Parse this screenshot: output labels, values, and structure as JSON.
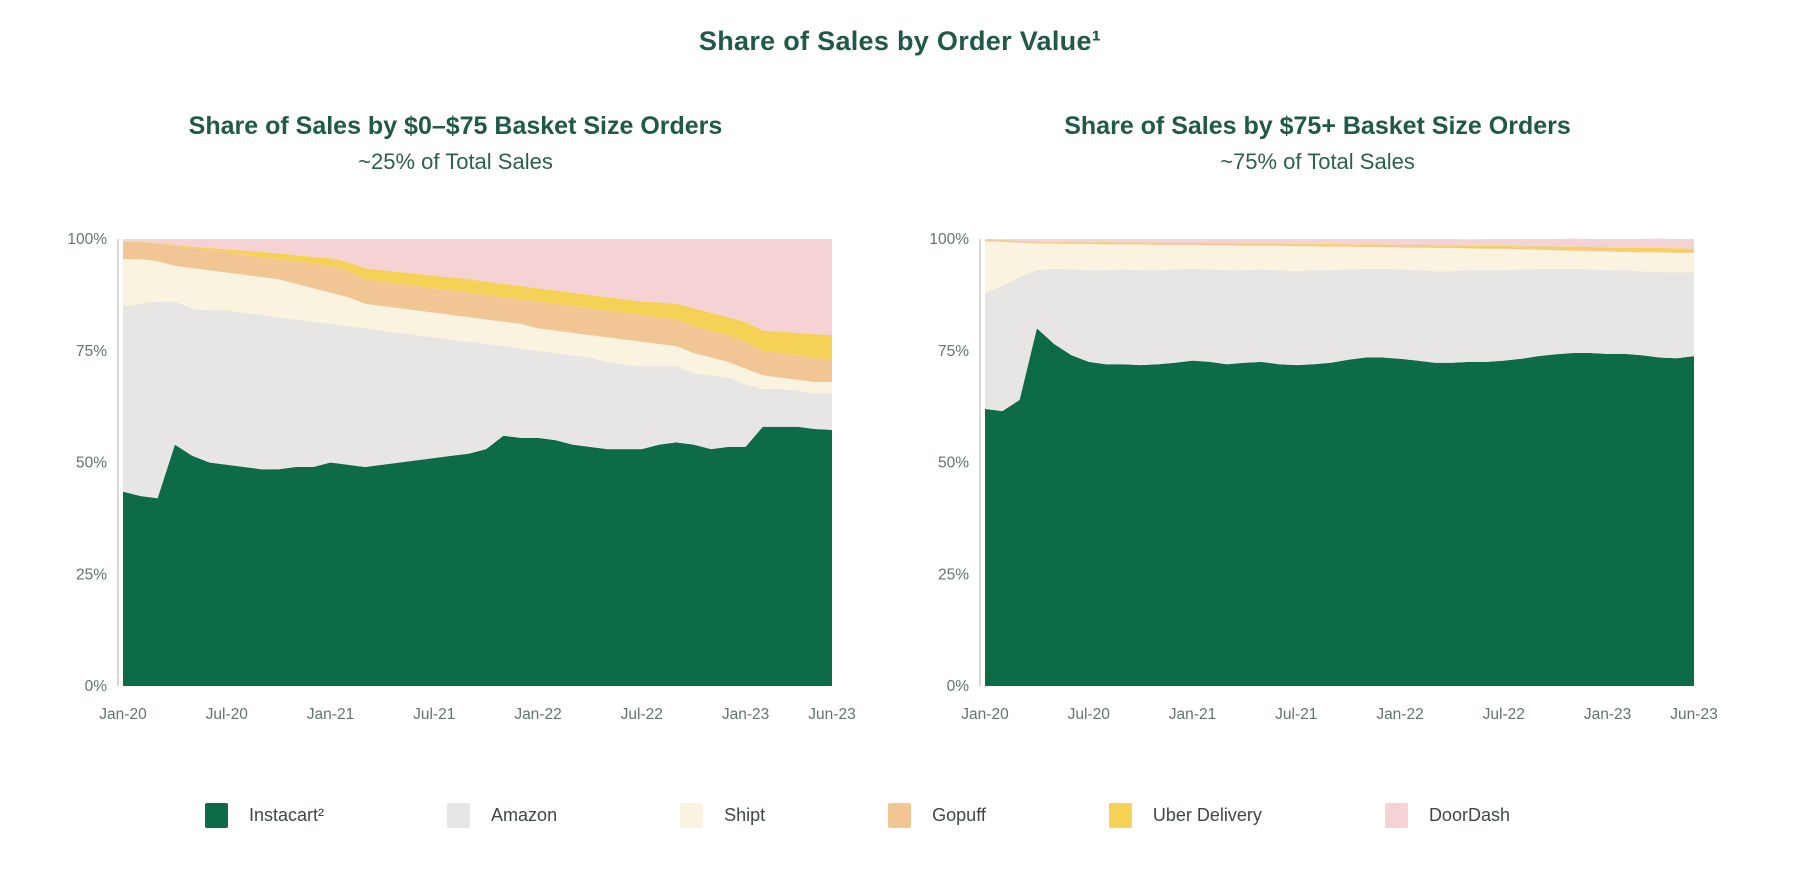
{
  "header": {
    "title": "Share of Sales by Order Value¹"
  },
  "style_colors": {
    "title_green": "#215949",
    "axis_label_gray": "#63746e",
    "axis_line_gray": "#c9cccb",
    "legend_text": "#404744"
  },
  "legend": {
    "items": [
      {
        "label": "Instacart²",
        "color": "#0d6b48"
      },
      {
        "label": "Amazon",
        "color": "#e7e6e4"
      },
      {
        "label": "Shipt",
        "color": "#faf3e0"
      },
      {
        "label": "Gopuff",
        "color": "#f2c595"
      },
      {
        "label": "Uber Delivery",
        "color": "#f5d255"
      },
      {
        "label": "DoorDash",
        "color": "#f5d2d4"
      }
    ]
  },
  "chart_data": [
    {
      "type": "area",
      "stacked": true,
      "title": "Share of Sales by $0–$75 Basket Size Orders",
      "subtitle": "~25% of Total Sales",
      "ylabel": "",
      "xlabel": "",
      "ylim": [
        0,
        100
      ],
      "grid": false,
      "legend_position": "bottom-shared",
      "x": [
        "Jan-20",
        "Feb-20",
        "Mar-20",
        "Apr-20",
        "May-20",
        "Jun-20",
        "Jul-20",
        "Aug-20",
        "Sep-20",
        "Oct-20",
        "Nov-20",
        "Dec-20",
        "Jan-21",
        "Feb-21",
        "Mar-21",
        "Apr-21",
        "May-21",
        "Jun-21",
        "Jul-21",
        "Aug-21",
        "Sep-21",
        "Oct-21",
        "Nov-21",
        "Dec-21",
        "Jan-22",
        "Feb-22",
        "Mar-22",
        "Apr-22",
        "May-22",
        "Jun-22",
        "Jul-22",
        "Aug-22",
        "Sep-22",
        "Oct-22",
        "Nov-22",
        "Dec-22",
        "Jan-23",
        "Feb-23",
        "Mar-23",
        "Apr-23",
        "May-23",
        "Jun-23"
      ],
      "x_tick_indices": [
        0,
        6,
        12,
        18,
        24,
        30,
        36,
        41
      ],
      "x_tick_labels": [
        "Jan-20",
        "Jul-20",
        "Jan-21",
        "Jul-21",
        "Jan-22",
        "Jul-22",
        "Jan-23",
        "Jun-23"
      ],
      "y_ticks": [
        {
          "label": "100%",
          "value": 100
        },
        {
          "label": "75%",
          "value": 75
        },
        {
          "label": "50%",
          "value": 50
        },
        {
          "label": "25%",
          "value": 25
        },
        {
          "label": "0%",
          "value": 0
        }
      ],
      "series": [
        {
          "name": "Instacart",
          "values": [
            43.5,
            42.5,
            42,
            54,
            51.5,
            50,
            49.5,
            49,
            48.5,
            48.5,
            49,
            49,
            50,
            49.5,
            49,
            49.5,
            50,
            50.5,
            51,
            51.5,
            52,
            53,
            56,
            55.5,
            55.5,
            55,
            54,
            53.5,
            53,
            53,
            53,
            54,
            54.5,
            54,
            53,
            53.5,
            53.5,
            58,
            58,
            58,
            57.5,
            57.3
          ]
        },
        {
          "name": "Amazon",
          "values": [
            41.5,
            43,
            44,
            32,
            33,
            34,
            34.5,
            34.5,
            34.5,
            34,
            33,
            32.5,
            31,
            31,
            31,
            30,
            29,
            28,
            27,
            26,
            25,
            23.5,
            20,
            20,
            19.5,
            19.5,
            20,
            20,
            19.5,
            19,
            18.5,
            17.5,
            17,
            16,
            16.5,
            15.5,
            14,
            8.5,
            8.5,
            8,
            8,
            8.2
          ]
        },
        {
          "name": "Shipt",
          "values": [
            10.5,
            10,
            9,
            8,
            9,
            9,
            8.5,
            8.5,
            8.5,
            8.5,
            8,
            7.5,
            7,
            6.5,
            5.5,
            5.5,
            5.5,
            5.5,
            5.5,
            5.5,
            5.5,
            5.5,
            5.5,
            5.5,
            5,
            5,
            5,
            5,
            5.5,
            5.5,
            5.5,
            5,
            4.5,
            4.5,
            4,
            3.5,
            3.5,
            3,
            2.5,
            2.5,
            2.5,
            2.5
          ]
        },
        {
          "name": "Gopuff",
          "values": [
            4,
            3.8,
            4,
            4.5,
            4.5,
            4.5,
            4.5,
            4.5,
            4.5,
            4.5,
            5,
            5.5,
            6,
            6,
            5.5,
            5.5,
            5.5,
            5.5,
            5.5,
            5.5,
            5.5,
            5.5,
            5.5,
            5.5,
            6,
            6,
            6,
            6,
            6,
            6,
            6,
            6,
            6,
            6,
            6,
            6,
            6,
            5.5,
            5.5,
            5.5,
            5.5,
            5
          ]
        },
        {
          "name": "Uber Delivery",
          "values": [
            0,
            0.1,
            0.1,
            0.2,
            0.3,
            0.5,
            0.7,
            0.9,
            1.1,
            1.3,
            1.4,
            1.5,
            1.7,
            1.8,
            2.5,
            2.5,
            2.6,
            2.7,
            2.8,
            2.9,
            3,
            3,
            3,
            3,
            3,
            3,
            3,
            3,
            3,
            3,
            3,
            3.3,
            3.5,
            4,
            4,
            4,
            4.5,
            4.5,
            4.8,
            5,
            5.2,
            5.5
          ]
        },
        {
          "name": "DoorDash",
          "values": [
            0.5,
            0.6,
            0.9,
            1.3,
            1.7,
            2,
            2.3,
            2.6,
            2.9,
            3.2,
            3.6,
            4,
            4.3,
            5.2,
            6.5,
            7,
            7.4,
            7.8,
            8.2,
            8.6,
            9,
            9.5,
            10,
            10.5,
            11,
            11.5,
            12,
            12.5,
            13,
            13.5,
            14,
            14.2,
            14.5,
            15.5,
            16.5,
            17.5,
            18.5,
            20.5,
            20.7,
            21,
            21.3,
            21.5
          ]
        }
      ]
    },
    {
      "type": "area",
      "stacked": true,
      "title": "Share of Sales by $75+ Basket Size Orders",
      "subtitle": "~75% of Total Sales",
      "ylabel": "",
      "xlabel": "",
      "ylim": [
        0,
        100
      ],
      "grid": false,
      "legend_position": "bottom-shared",
      "x": [
        "Jan-20",
        "Feb-20",
        "Mar-20",
        "Apr-20",
        "May-20",
        "Jun-20",
        "Jul-20",
        "Aug-20",
        "Sep-20",
        "Oct-20",
        "Nov-20",
        "Dec-20",
        "Jan-21",
        "Feb-21",
        "Mar-21",
        "Apr-21",
        "May-21",
        "Jun-21",
        "Jul-21",
        "Aug-21",
        "Sep-21",
        "Oct-21",
        "Nov-21",
        "Dec-21",
        "Jan-22",
        "Feb-22",
        "Mar-22",
        "Apr-22",
        "May-22",
        "Jun-22",
        "Jul-22",
        "Aug-22",
        "Sep-22",
        "Oct-22",
        "Nov-22",
        "Dec-22",
        "Jan-23",
        "Feb-23",
        "Mar-23",
        "Apr-23",
        "May-23",
        "Jun-23"
      ],
      "x_tick_indices": [
        0,
        6,
        12,
        18,
        24,
        30,
        36,
        41
      ],
      "x_tick_labels": [
        "Jan-20",
        "Jul-20",
        "Jan-21",
        "Jul-21",
        "Jan-22",
        "Jul-22",
        "Jan-23",
        "Jun-23"
      ],
      "y_ticks": [
        {
          "label": "100%",
          "value": 100
        },
        {
          "label": "75%",
          "value": 75
        },
        {
          "label": "50%",
          "value": 50
        },
        {
          "label": "25%",
          "value": 25
        },
        {
          "label": "0%",
          "value": 0
        }
      ],
      "series": [
        {
          "name": "Instacart",
          "values": [
            62,
            61.5,
            64,
            80,
            76.5,
            74,
            72.5,
            72,
            72,
            71.8,
            72,
            72.3,
            72.8,
            72.5,
            72,
            72.3,
            72.5,
            72,
            71.8,
            72,
            72.3,
            73,
            73.5,
            73.5,
            73.2,
            72.8,
            72.3,
            72.3,
            72.5,
            72.5,
            72.8,
            73.2,
            73.8,
            74.2,
            74.5,
            74.5,
            74.3,
            74.3,
            74,
            73.5,
            73.3,
            73.8
          ]
        },
        {
          "name": "Amazon",
          "values": [
            26,
            28,
            27.5,
            13,
            16.8,
            19.2,
            20.5,
            21,
            21.2,
            21.2,
            21,
            20.9,
            20.5,
            20.7,
            21,
            20.7,
            20.7,
            21,
            21,
            21,
            20.7,
            20.2,
            19.8,
            19.8,
            20,
            20.2,
            20.5,
            20.5,
            20.5,
            20.5,
            20.2,
            20,
            19.5,
            19.1,
            18.8,
            18.7,
            18.7,
            18.7,
            18.8,
            19.1,
            19.2,
            18.7
          ]
        },
        {
          "name": "Shipt",
          "values": [
            11.5,
            9.9,
            7.7,
            6,
            5.7,
            5.7,
            5.9,
            5.8,
            5.6,
            5.8,
            5.7,
            5.5,
            5.4,
            5.4,
            5.6,
            5.5,
            5.3,
            5.5,
            5.6,
            5.4,
            5.3,
            5.1,
            4.9,
            4.9,
            4.9,
            5.1,
            5.2,
            5.2,
            4.9,
            4.8,
            4.8,
            4.5,
            4.3,
            4.2,
            4.1,
            4.1,
            4.2,
            4.1,
            4.2,
            4.4,
            4.4,
            4.4
          ]
        },
        {
          "name": "Gopuff",
          "values": [
            0.3,
            0.3,
            0.3,
            0.3,
            0.3,
            0.3,
            0.3,
            0.3,
            0.3,
            0.3,
            0.3,
            0.3,
            0.3,
            0.3,
            0.3,
            0.3,
            0.3,
            0.3,
            0.3,
            0.3,
            0.3,
            0.3,
            0.3,
            0.3,
            0.3,
            0.3,
            0.3,
            0.3,
            0.3,
            0.3,
            0.3,
            0.3,
            0.3,
            0.3,
            0.3,
            0.3,
            0.3,
            0.3,
            0.3,
            0.3,
            0.3,
            0.3
          ]
        },
        {
          "name": "Uber Delivery",
          "values": [
            0.1,
            0.1,
            0.1,
            0.1,
            0.1,
            0.1,
            0.1,
            0.2,
            0.1,
            0.1,
            0.2,
            0.1,
            0.1,
            0.2,
            0.2,
            0.2,
            0.2,
            0.2,
            0.2,
            0.2,
            0.3,
            0.2,
            0.3,
            0.3,
            0.3,
            0.3,
            0.3,
            0.3,
            0.3,
            0.4,
            0.4,
            0.4,
            0.5,
            0.5,
            0.6,
            0.6,
            0.6,
            0.6,
            0.7,
            0.7,
            0.7,
            0.6
          ]
        },
        {
          "name": "DoorDash",
          "values": [
            0.1,
            0.2,
            0.4,
            0.6,
            0.6,
            0.7,
            0.7,
            0.7,
            0.8,
            0.8,
            0.8,
            0.9,
            0.9,
            0.9,
            0.9,
            1,
            1,
            1,
            1.1,
            1.1,
            1.1,
            1.2,
            1.2,
            1.2,
            1.3,
            1.3,
            1.4,
            1.4,
            1.4,
            1.5,
            1.5,
            1.6,
            1.6,
            1.7,
            1.8,
            1.8,
            1.9,
            2,
            2,
            2.1,
            2.1,
            2.2
          ]
        }
      ]
    }
  ]
}
